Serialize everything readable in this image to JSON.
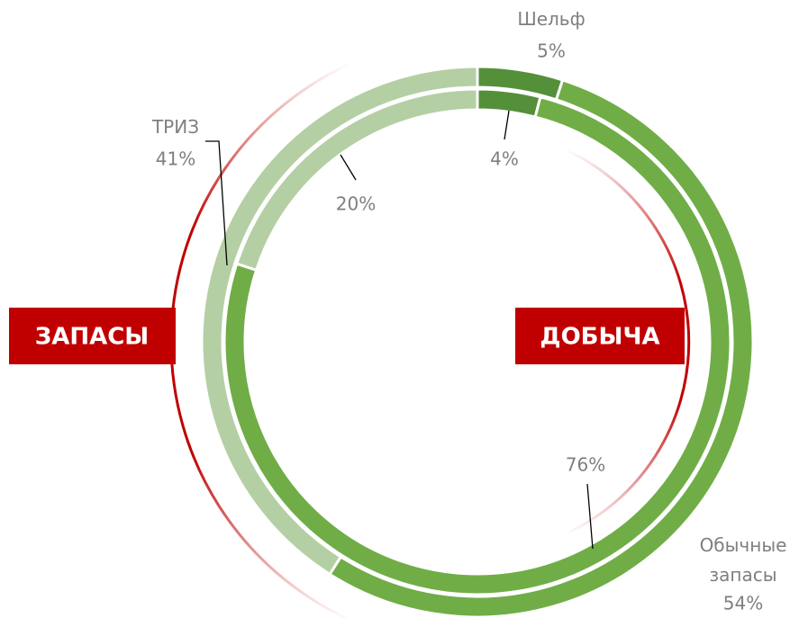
{
  "chart_data": {
    "type": "donut",
    "categories": [
      "Шельф",
      "Обычные запасы",
      "ТРИЗ"
    ],
    "colors": [
      "#548f3a",
      "#70ad47",
      "#b4cfa4"
    ],
    "series": [
      {
        "name": "ЗАПАСЫ",
        "values": [
          5,
          54,
          41
        ],
        "value_labels": [
          "5%",
          "54%",
          "41%"
        ]
      },
      {
        "name": "ДОБЫЧА",
        "values": [
          4,
          76,
          20
        ],
        "value_labels": [
          "4%",
          "76%",
          "20%"
        ]
      }
    ]
  }
}
